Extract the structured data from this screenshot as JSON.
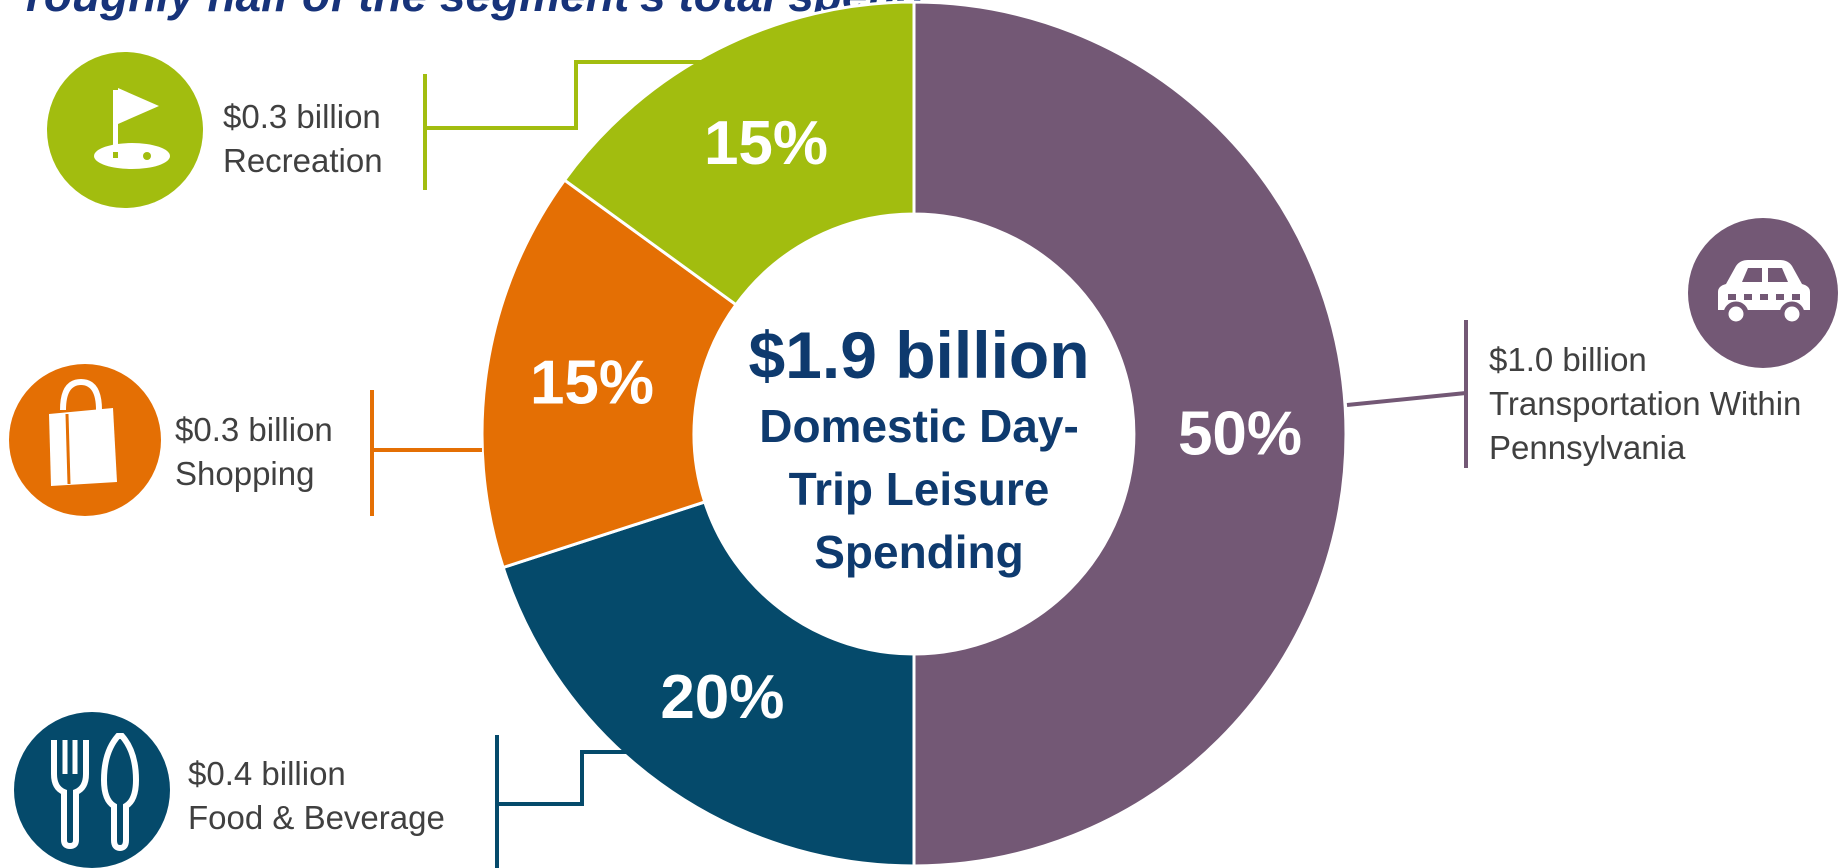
{
  "subtitle": "roughly half of the segment's total spend.",
  "center": {
    "total": "$1.9 billion",
    "description": "Domestic Day-Trip Leisure Spending"
  },
  "colors": {
    "transportation": "#735875",
    "food": "#054a6b",
    "shopping": "#e46f04",
    "recreation": "#a2bd0f",
    "center_text": "#0e3a6e"
  },
  "segments": [
    {
      "key": "transportation",
      "amount": "$1.0 billion",
      "category": "Transportation Within Pennsylvania",
      "category_lines": [
        "Transportation Within",
        "Pennsylvania"
      ],
      "pct_label": "50%",
      "icon": "car-icon"
    },
    {
      "key": "food",
      "amount": "$0.4 billion",
      "category": "Food & Beverage",
      "pct_label": "20%",
      "icon": "fork-spoon-icon"
    },
    {
      "key": "shopping",
      "amount": "$0.3 billion",
      "category": "Shopping",
      "pct_label": "15%",
      "icon": "shopping-bag-icon"
    },
    {
      "key": "recreation",
      "amount": "$0.3 billion",
      "category": "Recreation",
      "pct_label": "15%",
      "icon": "golf-flag-icon"
    }
  ],
  "chart_data": {
    "type": "pie",
    "variant": "donut",
    "title": "",
    "total": "$1.9 billion",
    "categories": [
      "Transportation Within Pennsylvania",
      "Food & Beverage",
      "Shopping",
      "Recreation"
    ],
    "values": [
      50,
      20,
      15,
      15
    ],
    "amounts_billion": [
      1.0,
      0.4,
      0.3,
      0.3
    ],
    "unit": "%"
  }
}
